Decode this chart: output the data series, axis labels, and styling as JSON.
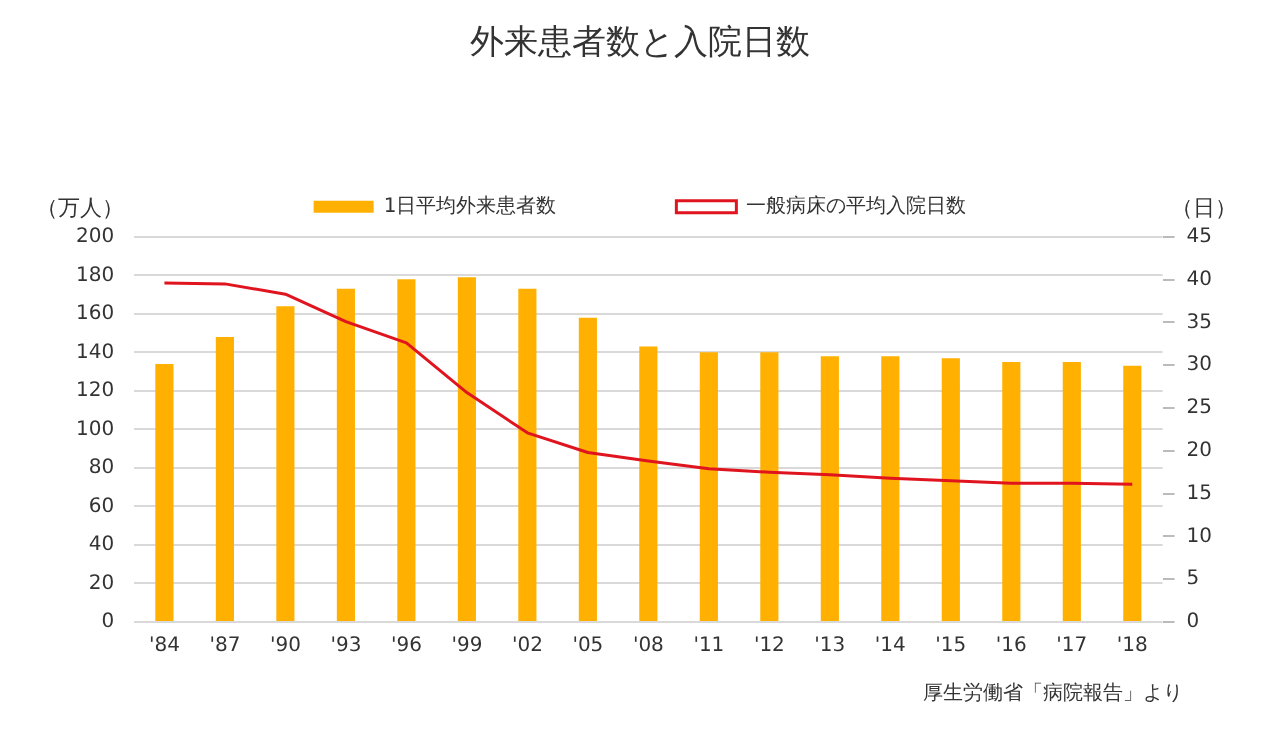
{
  "chart_data": {
    "type": "bar",
    "title": "外来患者数と入院日数",
    "ylabel": "（万人）",
    "y2label": "（日）",
    "categories": [
      "'84",
      "'87",
      "'90",
      "'93",
      "'96",
      "'99",
      "'02",
      "'05",
      "'08",
      "'11",
      "'12",
      "'13",
      "'14",
      "'15",
      "'16",
      "'17",
      "'18"
    ],
    "series": [
      {
        "name": "1日平均外来患者数",
        "color": "#ffb000",
        "values": [
          134,
          148,
          164,
          173,
          178,
          179,
          173,
          158,
          143,
          140,
          140,
          138,
          138,
          137,
          135,
          135,
          133
        ]
      },
      {
        "name": "一般病床の平均入院日数",
        "type": "line",
        "axis": "y2",
        "color": "#e0141e",
        "values": [
          39.6,
          39.5,
          38.3,
          35.1,
          32.6,
          26.8,
          22.1,
          19.8,
          18.8,
          17.9,
          17.5,
          17.2,
          16.8,
          16.5,
          16.2,
          16.2,
          16.1
        ]
      }
    ],
    "ylim": [
      0,
      200
    ],
    "yticks": [
      0,
      20,
      40,
      60,
      80,
      100,
      120,
      140,
      160,
      180,
      200
    ],
    "y2lim": [
      0,
      45
    ],
    "y2ticks": [
      0,
      5,
      10,
      15,
      20,
      25,
      30,
      35,
      40,
      45
    ],
    "grid": "y",
    "legend": "top",
    "marker": "none",
    "annotations": [
      "厚生労働省「病院報告」より"
    ]
  }
}
